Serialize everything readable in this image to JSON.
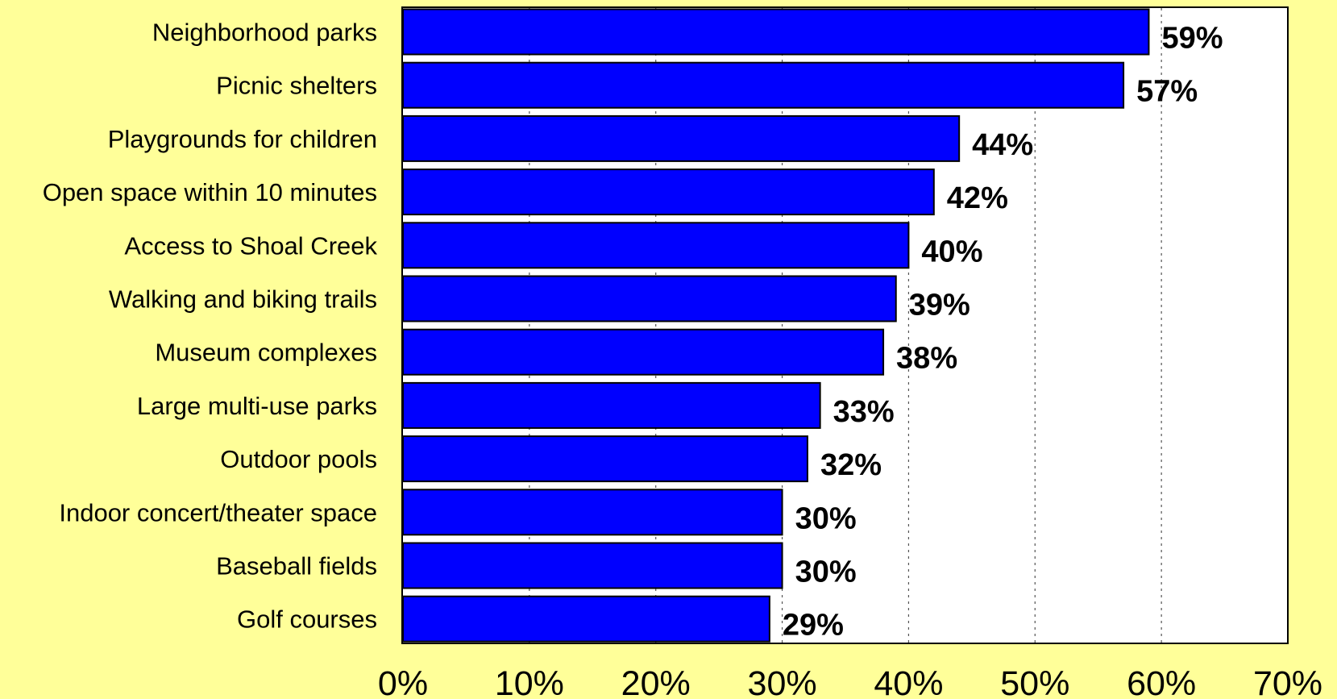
{
  "chart_data": {
    "type": "bar",
    "orientation": "horizontal",
    "categories": [
      "Neighborhood parks",
      "Picnic shelters",
      "Playgrounds for children",
      "Open space within 10 minutes",
      "Access to Shoal Creek",
      "Walking and biking trails",
      "Museum complexes",
      "Large multi-use parks",
      "Outdoor pools",
      "Indoor concert/theater space",
      "Baseball fields",
      "Golf courses"
    ],
    "values": [
      59,
      57,
      44,
      42,
      40,
      39,
      38,
      33,
      32,
      30,
      30,
      29
    ],
    "data_labels": [
      "59%",
      "57%",
      "44%",
      "42%",
      "40%",
      "39%",
      "38%",
      "33%",
      "32%",
      "30%",
      "30%",
      "29%"
    ],
    "x_ticks": [
      0,
      10,
      20,
      30,
      40,
      50,
      60,
      70
    ],
    "x_tick_labels": [
      "0%",
      "10%",
      "20%",
      "30%",
      "40%",
      "50%",
      "60%",
      "70%"
    ],
    "xlim": [
      0,
      70
    ],
    "title": "",
    "xlabel": "",
    "ylabel": "",
    "grid": "vertical dotted",
    "legend": "none",
    "colors": {
      "background": "#ffff99",
      "plot_area": "#ffffff",
      "bar_fill": "#0000ff",
      "bar_stroke": "#000000",
      "text": "#000000"
    }
  }
}
